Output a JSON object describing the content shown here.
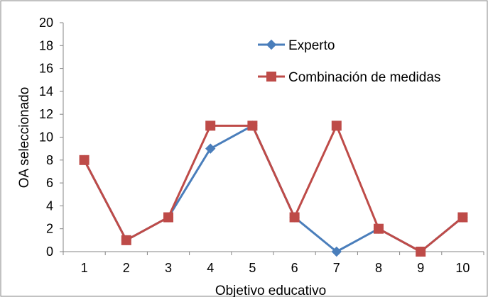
{
  "chart_data": {
    "type": "line",
    "categories": [
      "1",
      "2",
      "3",
      "4",
      "5",
      "6",
      "7",
      "8",
      "9",
      "10"
    ],
    "series": [
      {
        "name": "Experto",
        "color": "#4a7ebb",
        "marker": "diamond",
        "values": [
          8,
          1,
          3,
          9,
          11,
          3,
          0,
          2,
          0,
          3
        ]
      },
      {
        "name": "Combinación de medidas",
        "color": "#be4b48",
        "marker": "square",
        "values": [
          8,
          1,
          3,
          11,
          11,
          3,
          11,
          2,
          0,
          3
        ]
      }
    ],
    "title": "",
    "xlabel": "Objetivo educativo",
    "ylabel": "OA seleccionado",
    "ylim": [
      0,
      20
    ],
    "yticks": [
      "0",
      "2",
      "4",
      "6",
      "8",
      "10",
      "12",
      "14",
      "16",
      "18",
      "20"
    ],
    "grid": false,
    "legend_position": "top-right"
  }
}
